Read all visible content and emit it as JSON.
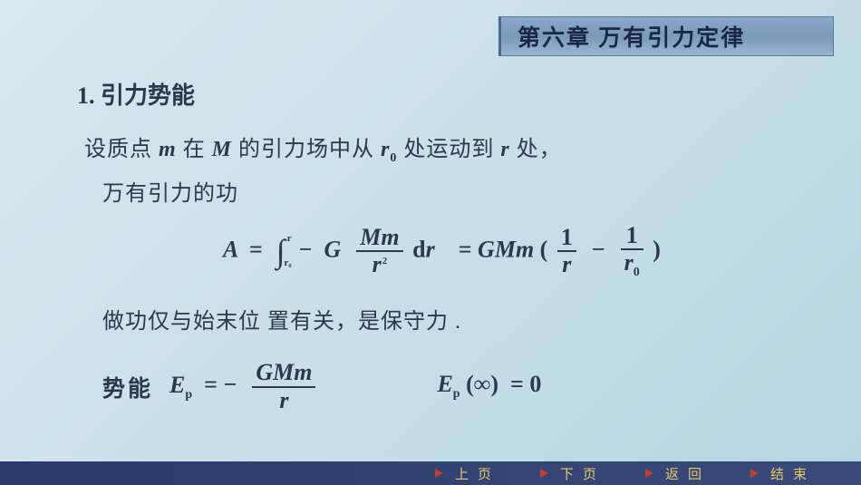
{
  "chapter_title": "第六章 万有引力定律",
  "section": {
    "number": "1.",
    "title": "引力势能"
  },
  "text": {
    "setup_prefix": "设质点 ",
    "setup_mid1": " 在 ",
    "setup_mid2": " 的引力场中从 ",
    "setup_mid3": " 处运动到 ",
    "setup_suffix": " 处，",
    "line2": "万有引力的功",
    "conservative": "做功仅与始末位 置有关，是保守力 .",
    "potential_label": "势能"
  },
  "vars": {
    "m": "m",
    "M": "M",
    "r0": "r",
    "r0_sub": "0",
    "r": "r",
    "A": "A",
    "G": "G",
    "Ep": "E",
    "Ep_sub": "p",
    "inf": "∞",
    "zero": "0",
    "eq": "=",
    "minus": "−",
    "d": "d",
    "lparen": "(",
    "rparen": ")",
    "one": "1",
    "two": "2",
    "int_upper": "r",
    "int_lower": "r₀"
  },
  "nav": {
    "prev": "上页",
    "next": "下页",
    "back": "返回",
    "end": "结束"
  },
  "colors": {
    "bg_start": "#d8e8f0",
    "bg_end": "#b8d6e0",
    "banner_bg": "#8ba8c8",
    "text": "#2a3850",
    "nav_bg": "#2a3a6a",
    "nav_text": "#e8c860",
    "nav_arrow": "#c04030"
  }
}
